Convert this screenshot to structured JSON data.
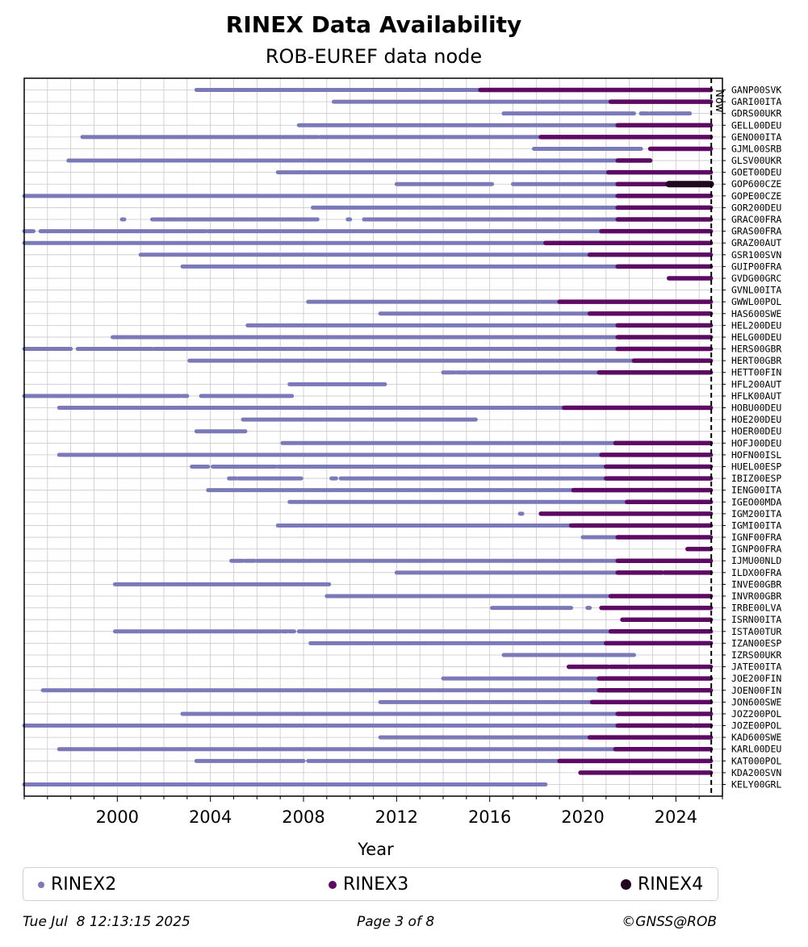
{
  "chart_data": {
    "type": "timeline",
    "title": "RINEX Data Availability",
    "subtitle": "ROB-EUREF data node",
    "xlabel": "Year",
    "xlim": [
      1996.0,
      2026.0
    ],
    "xticks": [
      2000,
      2004,
      2008,
      2012,
      2016,
      2020,
      2024
    ],
    "now": 2025.52,
    "now_label": "Now",
    "grid": true,
    "colors": {
      "RINEX2": "#7b79b8",
      "RINEX3": "#5c0a63",
      "RINEX4": "#20081f"
    },
    "legend": [
      "RINEX2",
      "RINEX3",
      "RINEX4"
    ],
    "legend_position": "bottom",
    "stations": [
      {
        "name": "GANP00SVK",
        "segments": [
          [
            2003.4,
            2015.6,
            "RINEX2"
          ],
          [
            2015.6,
            2025.5,
            "RINEX3"
          ]
        ]
      },
      {
        "name": "GARI00ITA",
        "segments": [
          [
            2009.3,
            2021.2,
            "RINEX2"
          ],
          [
            2021.2,
            2025.5,
            "RINEX3"
          ]
        ]
      },
      {
        "name": "GDRS00UKR",
        "segments": [
          [
            2016.6,
            2022.2,
            "RINEX2"
          ],
          [
            2022.5,
            2022.8,
            "RINEX2"
          ],
          [
            2022.9,
            2024.6,
            "RINEX2"
          ]
        ]
      },
      {
        "name": "GELL00DEU",
        "segments": [
          [
            2007.8,
            2021.5,
            "RINEX2"
          ],
          [
            2021.5,
            2025.5,
            "RINEX3"
          ]
        ]
      },
      {
        "name": "GENO00ITA",
        "segments": [
          [
            1998.5,
            2008.6,
            "RINEX2"
          ],
          [
            2008.7,
            2018.2,
            "RINEX2"
          ],
          [
            2018.2,
            2025.5,
            "RINEX3"
          ]
        ]
      },
      {
        "name": "GJML00SRB",
        "segments": [
          [
            2017.9,
            2022.5,
            "RINEX2"
          ],
          [
            2022.9,
            2025.5,
            "RINEX3"
          ]
        ]
      },
      {
        "name": "GLSV00UKR",
        "segments": [
          [
            1997.9,
            2021.5,
            "RINEX2"
          ],
          [
            2021.5,
            2022.9,
            "RINEX3"
          ]
        ]
      },
      {
        "name": "GOET00DEU",
        "segments": [
          [
            2006.9,
            2021.1,
            "RINEX2"
          ],
          [
            2021.1,
            2025.5,
            "RINEX3"
          ]
        ]
      },
      {
        "name": "GOP600CZE",
        "segments": [
          [
            2012.0,
            2016.1,
            "RINEX2"
          ],
          [
            2017.0,
            2021.5,
            "RINEX2"
          ],
          [
            2021.5,
            2023.7,
            "RINEX3"
          ],
          [
            2023.7,
            2025.5,
            "RINEX4"
          ]
        ]
      },
      {
        "name": "GOPE00CZE",
        "segments": [
          [
            1996.0,
            2021.5,
            "RINEX2"
          ],
          [
            2021.5,
            2025.5,
            "RINEX3"
          ]
        ]
      },
      {
        "name": "GOR200DEU",
        "segments": [
          [
            2008.4,
            2021.5,
            "RINEX2"
          ],
          [
            2021.5,
            2025.5,
            "RINEX3"
          ]
        ]
      },
      {
        "name": "GRAC00FRA",
        "segments": [
          [
            2000.2,
            2000.3,
            "RINEX2"
          ],
          [
            2001.5,
            2008.6,
            "RINEX2"
          ],
          [
            2009.9,
            2010.0,
            "RINEX2"
          ],
          [
            2010.6,
            2021.5,
            "RINEX2"
          ],
          [
            2021.5,
            2025.5,
            "RINEX3"
          ]
        ]
      },
      {
        "name": "GRAS00FRA",
        "segments": [
          [
            1996.0,
            1996.4,
            "RINEX2"
          ],
          [
            1996.7,
            2003.8,
            "RINEX2"
          ],
          [
            2003.9,
            2020.8,
            "RINEX2"
          ],
          [
            2020.8,
            2025.5,
            "RINEX3"
          ]
        ]
      },
      {
        "name": "GRAZ00AUT",
        "segments": [
          [
            1996.0,
            2018.4,
            "RINEX2"
          ],
          [
            2018.4,
            2025.5,
            "RINEX3"
          ]
        ]
      },
      {
        "name": "GSR100SVN",
        "segments": [
          [
            2001.0,
            2020.3,
            "RINEX2"
          ],
          [
            2020.3,
            2025.5,
            "RINEX3"
          ]
        ]
      },
      {
        "name": "GUIP00FRA",
        "segments": [
          [
            2002.8,
            2021.5,
            "RINEX2"
          ],
          [
            2021.5,
            2025.5,
            "RINEX3"
          ]
        ]
      },
      {
        "name": "GVDG00GRC",
        "segments": [
          [
            2023.7,
            2025.5,
            "RINEX3"
          ]
        ]
      },
      {
        "name": "GVNL00ITA",
        "segments": []
      },
      {
        "name": "GWWL00POL",
        "segments": [
          [
            2008.2,
            2019.0,
            "RINEX2"
          ],
          [
            2019.0,
            2025.5,
            "RINEX3"
          ]
        ]
      },
      {
        "name": "HAS600SWE",
        "segments": [
          [
            2011.3,
            2020.3,
            "RINEX2"
          ],
          [
            2020.3,
            2025.5,
            "RINEX3"
          ]
        ]
      },
      {
        "name": "HEL200DEU",
        "segments": [
          [
            2005.6,
            2021.5,
            "RINEX2"
          ],
          [
            2021.5,
            2025.5,
            "RINEX3"
          ]
        ]
      },
      {
        "name": "HELG00DEU",
        "segments": [
          [
            1999.8,
            2021.5,
            "RINEX2"
          ],
          [
            2021.5,
            2025.5,
            "RINEX3"
          ]
        ]
      },
      {
        "name": "HERS00GBR",
        "segments": [
          [
            1996.0,
            1998.0,
            "RINEX2"
          ],
          [
            1998.3,
            2001.5,
            "RINEX2"
          ],
          [
            2001.6,
            2021.5,
            "RINEX2"
          ],
          [
            2021.5,
            2025.5,
            "RINEX3"
          ]
        ]
      },
      {
        "name": "HERT00GBR",
        "segments": [
          [
            2003.1,
            2022.2,
            "RINEX2"
          ],
          [
            2022.2,
            2025.5,
            "RINEX3"
          ]
        ]
      },
      {
        "name": "HETT00FIN",
        "segments": [
          [
            2014.0,
            2014.5,
            "RINEX2"
          ],
          [
            2014.6,
            2015.0,
            "RINEX2"
          ],
          [
            2015.1,
            2020.7,
            "RINEX2"
          ],
          [
            2020.7,
            2025.5,
            "RINEX3"
          ]
        ]
      },
      {
        "name": "HFL200AUT",
        "segments": [
          [
            2007.4,
            2011.5,
            "RINEX2"
          ]
        ]
      },
      {
        "name": "HFLK00AUT",
        "segments": [
          [
            1996.0,
            2002.7,
            "RINEX2"
          ],
          [
            2002.8,
            2003.0,
            "RINEX2"
          ],
          [
            2003.6,
            2007.5,
            "RINEX2"
          ]
        ]
      },
      {
        "name": "HOBU00DEU",
        "segments": [
          [
            1997.5,
            2019.2,
            "RINEX2"
          ],
          [
            2019.2,
            2025.5,
            "RINEX3"
          ]
        ]
      },
      {
        "name": "HOE200DEU",
        "segments": [
          [
            2005.4,
            2015.4,
            "RINEX2"
          ]
        ]
      },
      {
        "name": "HOER00DEU",
        "segments": [
          [
            2003.4,
            2005.5,
            "RINEX2"
          ]
        ]
      },
      {
        "name": "HOFJ00DEU",
        "segments": [
          [
            2007.1,
            2021.4,
            "RINEX2"
          ],
          [
            2021.4,
            2025.5,
            "RINEX3"
          ]
        ]
      },
      {
        "name": "HOFN00ISL",
        "segments": [
          [
            1997.5,
            2020.8,
            "RINEX2"
          ],
          [
            2020.8,
            2025.5,
            "RINEX3"
          ]
        ]
      },
      {
        "name": "HUEL00ESP",
        "segments": [
          [
            2003.2,
            2003.9,
            "RINEX2"
          ],
          [
            2004.1,
            2006.8,
            "RINEX2"
          ],
          [
            2006.9,
            2021.0,
            "RINEX2"
          ],
          [
            2021.0,
            2025.5,
            "RINEX3"
          ]
        ]
      },
      {
        "name": "IBIZ00ESP",
        "segments": [
          [
            2004.8,
            2005.1,
            "RINEX2"
          ],
          [
            2005.2,
            2007.9,
            "RINEX2"
          ],
          [
            2009.2,
            2009.4,
            "RINEX2"
          ],
          [
            2009.6,
            2021.0,
            "RINEX2"
          ],
          [
            2021.0,
            2025.5,
            "RINEX3"
          ]
        ]
      },
      {
        "name": "IENG00ITA",
        "segments": [
          [
            2003.9,
            2019.6,
            "RINEX2"
          ],
          [
            2019.6,
            2025.5,
            "RINEX3"
          ]
        ]
      },
      {
        "name": "IGEO00MDA",
        "segments": [
          [
            2007.4,
            2021.9,
            "RINEX2"
          ],
          [
            2021.9,
            2025.5,
            "RINEX3"
          ]
        ]
      },
      {
        "name": "IGM200ITA",
        "segments": [
          [
            2017.3,
            2017.4,
            "RINEX2"
          ],
          [
            2018.2,
            2025.5,
            "RINEX3"
          ]
        ]
      },
      {
        "name": "IGMI00ITA",
        "segments": [
          [
            2006.9,
            2019.5,
            "RINEX2"
          ],
          [
            2019.5,
            2025.5,
            "RINEX3"
          ]
        ]
      },
      {
        "name": "IGNF00FRA",
        "segments": [
          [
            2020.0,
            2021.5,
            "RINEX2"
          ],
          [
            2021.5,
            2025.5,
            "RINEX3"
          ]
        ]
      },
      {
        "name": "IGNP00FRA",
        "segments": [
          [
            2024.5,
            2025.5,
            "RINEX3"
          ]
        ]
      },
      {
        "name": "IJMU00NLD",
        "segments": [
          [
            2004.9,
            2005.4,
            "RINEX2"
          ],
          [
            2005.5,
            2005.9,
            "RINEX2"
          ],
          [
            2006.0,
            2021.5,
            "RINEX2"
          ],
          [
            2021.5,
            2025.5,
            "RINEX3"
          ]
        ]
      },
      {
        "name": "ILDX00FRA",
        "segments": [
          [
            2012.0,
            2021.5,
            "RINEX2"
          ],
          [
            2021.5,
            2023.4,
            "RINEX3"
          ],
          [
            2023.5,
            2025.5,
            "RINEX3"
          ]
        ]
      },
      {
        "name": "INVE00GBR",
        "segments": [
          [
            1999.9,
            2009.1,
            "RINEX2"
          ]
        ]
      },
      {
        "name": "INVR00GBR",
        "segments": [
          [
            2009.0,
            2021.2,
            "RINEX2"
          ],
          [
            2021.2,
            2025.5,
            "RINEX3"
          ]
        ]
      },
      {
        "name": "IRBE00LVA",
        "segments": [
          [
            2016.1,
            2019.5,
            "RINEX2"
          ],
          [
            2020.2,
            2020.3,
            "RINEX2"
          ],
          [
            2020.8,
            2025.5,
            "RINEX3"
          ]
        ]
      },
      {
        "name": "ISRN00ITA",
        "segments": [
          [
            2021.7,
            2025.5,
            "RINEX3"
          ]
        ]
      },
      {
        "name": "ISTA00TUR",
        "segments": [
          [
            1999.9,
            2007.0,
            "RINEX2"
          ],
          [
            2007.1,
            2007.3,
            "RINEX2"
          ],
          [
            2007.4,
            2007.6,
            "RINEX2"
          ],
          [
            2007.8,
            2021.2,
            "RINEX2"
          ],
          [
            2021.2,
            2025.5,
            "RINEX3"
          ]
        ]
      },
      {
        "name": "IZAN00ESP",
        "segments": [
          [
            2008.3,
            2021.0,
            "RINEX2"
          ],
          [
            2021.0,
            2025.5,
            "RINEX3"
          ]
        ]
      },
      {
        "name": "IZRS00UKR",
        "segments": [
          [
            2016.6,
            2022.2,
            "RINEX2"
          ]
        ]
      },
      {
        "name": "JATE00ITA",
        "segments": [
          [
            2019.4,
            2021.1,
            "RINEX3"
          ],
          [
            2021.2,
            2021.9,
            "RINEX3"
          ],
          [
            2022.0,
            2025.5,
            "RINEX3"
          ]
        ]
      },
      {
        "name": "JOE200FIN",
        "segments": [
          [
            2014.0,
            2020.7,
            "RINEX2"
          ],
          [
            2020.7,
            2025.5,
            "RINEX3"
          ]
        ]
      },
      {
        "name": "JOEN00FIN",
        "segments": [
          [
            1996.8,
            2020.7,
            "RINEX2"
          ],
          [
            2020.7,
            2025.5,
            "RINEX3"
          ]
        ]
      },
      {
        "name": "JON600SWE",
        "segments": [
          [
            2011.3,
            2020.4,
            "RINEX2"
          ],
          [
            2020.4,
            2025.5,
            "RINEX3"
          ]
        ]
      },
      {
        "name": "JOZ200POL",
        "segments": [
          [
            2002.8,
            2021.5,
            "RINEX2"
          ],
          [
            2021.5,
            2025.5,
            "RINEX3"
          ]
        ]
      },
      {
        "name": "JOZE00POL",
        "segments": [
          [
            1996.0,
            2021.5,
            "RINEX2"
          ],
          [
            2021.5,
            2024.7,
            "RINEX3"
          ],
          [
            2024.8,
            2025.5,
            "RINEX3"
          ]
        ]
      },
      {
        "name": "KAD600SWE",
        "segments": [
          [
            2011.3,
            2020.3,
            "RINEX2"
          ],
          [
            2020.3,
            2025.5,
            "RINEX3"
          ]
        ]
      },
      {
        "name": "KARL00DEU",
        "segments": [
          [
            1997.5,
            2021.4,
            "RINEX2"
          ],
          [
            2021.4,
            2025.5,
            "RINEX3"
          ]
        ]
      },
      {
        "name": "KAT000POL",
        "segments": [
          [
            2003.4,
            2008.0,
            "RINEX2"
          ],
          [
            2008.2,
            2019.0,
            "RINEX2"
          ],
          [
            2019.0,
            2025.5,
            "RINEX3"
          ]
        ]
      },
      {
        "name": "KDA200SVN",
        "segments": [
          [
            2019.9,
            2025.5,
            "RINEX3"
          ]
        ]
      },
      {
        "name": "KELY00GRL",
        "segments": [
          [
            1996.0,
            2018.4,
            "RINEX2"
          ]
        ]
      }
    ]
  },
  "legend": {
    "items": [
      {
        "label": "RINEX2",
        "color": "#7b79b8",
        "dot": "small"
      },
      {
        "label": "RINEX3",
        "color": "#5c0a63",
        "dot": "medium"
      },
      {
        "label": "RINEX4",
        "color": "#20081f",
        "dot": "large"
      }
    ]
  },
  "footer": {
    "date": "Tue Jul  8 12:13:15 2025",
    "page": "Page 3 of 8",
    "copyright": "©GNSS@ROB"
  }
}
